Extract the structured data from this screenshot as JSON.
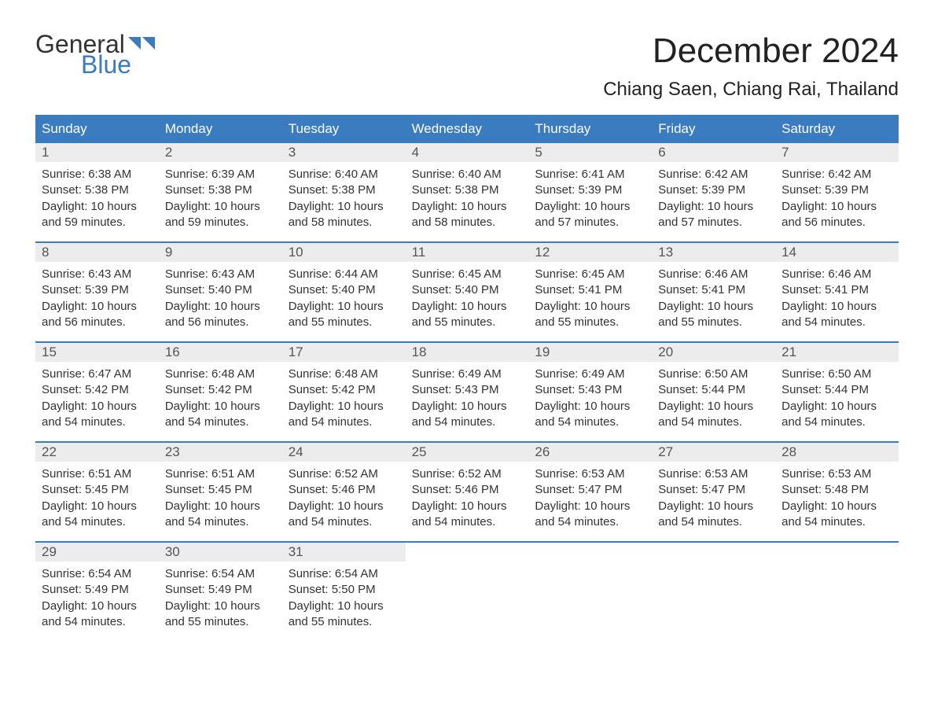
{
  "logo": {
    "word1": "General",
    "word2": "Blue",
    "color1": "#333333",
    "color2": "#3b7bbf"
  },
  "title": "December 2024",
  "location": "Chiang Saen, Chiang Rai, Thailand",
  "header_bg": "#3b7bbf",
  "header_fg": "#ffffff",
  "daynum_bg": "#ececec",
  "text_color": "#333333",
  "weekdays": [
    "Sunday",
    "Monday",
    "Tuesday",
    "Wednesday",
    "Thursday",
    "Friday",
    "Saturday"
  ],
  "days": [
    {
      "n": 1,
      "sunrise": "6:38 AM",
      "sunset": "5:38 PM",
      "daylight": "10 hours and 59 minutes."
    },
    {
      "n": 2,
      "sunrise": "6:39 AM",
      "sunset": "5:38 PM",
      "daylight": "10 hours and 59 minutes."
    },
    {
      "n": 3,
      "sunrise": "6:40 AM",
      "sunset": "5:38 PM",
      "daylight": "10 hours and 58 minutes."
    },
    {
      "n": 4,
      "sunrise": "6:40 AM",
      "sunset": "5:38 PM",
      "daylight": "10 hours and 58 minutes."
    },
    {
      "n": 5,
      "sunrise": "6:41 AM",
      "sunset": "5:39 PM",
      "daylight": "10 hours and 57 minutes."
    },
    {
      "n": 6,
      "sunrise": "6:42 AM",
      "sunset": "5:39 PM",
      "daylight": "10 hours and 57 minutes."
    },
    {
      "n": 7,
      "sunrise": "6:42 AM",
      "sunset": "5:39 PM",
      "daylight": "10 hours and 56 minutes."
    },
    {
      "n": 8,
      "sunrise": "6:43 AM",
      "sunset": "5:39 PM",
      "daylight": "10 hours and 56 minutes."
    },
    {
      "n": 9,
      "sunrise": "6:43 AM",
      "sunset": "5:40 PM",
      "daylight": "10 hours and 56 minutes."
    },
    {
      "n": 10,
      "sunrise": "6:44 AM",
      "sunset": "5:40 PM",
      "daylight": "10 hours and 55 minutes."
    },
    {
      "n": 11,
      "sunrise": "6:45 AM",
      "sunset": "5:40 PM",
      "daylight": "10 hours and 55 minutes."
    },
    {
      "n": 12,
      "sunrise": "6:45 AM",
      "sunset": "5:41 PM",
      "daylight": "10 hours and 55 minutes."
    },
    {
      "n": 13,
      "sunrise": "6:46 AM",
      "sunset": "5:41 PM",
      "daylight": "10 hours and 55 minutes."
    },
    {
      "n": 14,
      "sunrise": "6:46 AM",
      "sunset": "5:41 PM",
      "daylight": "10 hours and 54 minutes."
    },
    {
      "n": 15,
      "sunrise": "6:47 AM",
      "sunset": "5:42 PM",
      "daylight": "10 hours and 54 minutes."
    },
    {
      "n": 16,
      "sunrise": "6:48 AM",
      "sunset": "5:42 PM",
      "daylight": "10 hours and 54 minutes."
    },
    {
      "n": 17,
      "sunrise": "6:48 AM",
      "sunset": "5:42 PM",
      "daylight": "10 hours and 54 minutes."
    },
    {
      "n": 18,
      "sunrise": "6:49 AM",
      "sunset": "5:43 PM",
      "daylight": "10 hours and 54 minutes."
    },
    {
      "n": 19,
      "sunrise": "6:49 AM",
      "sunset": "5:43 PM",
      "daylight": "10 hours and 54 minutes."
    },
    {
      "n": 20,
      "sunrise": "6:50 AM",
      "sunset": "5:44 PM",
      "daylight": "10 hours and 54 minutes."
    },
    {
      "n": 21,
      "sunrise": "6:50 AM",
      "sunset": "5:44 PM",
      "daylight": "10 hours and 54 minutes."
    },
    {
      "n": 22,
      "sunrise": "6:51 AM",
      "sunset": "5:45 PM",
      "daylight": "10 hours and 54 minutes."
    },
    {
      "n": 23,
      "sunrise": "6:51 AM",
      "sunset": "5:45 PM",
      "daylight": "10 hours and 54 minutes."
    },
    {
      "n": 24,
      "sunrise": "6:52 AM",
      "sunset": "5:46 PM",
      "daylight": "10 hours and 54 minutes."
    },
    {
      "n": 25,
      "sunrise": "6:52 AM",
      "sunset": "5:46 PM",
      "daylight": "10 hours and 54 minutes."
    },
    {
      "n": 26,
      "sunrise": "6:53 AM",
      "sunset": "5:47 PM",
      "daylight": "10 hours and 54 minutes."
    },
    {
      "n": 27,
      "sunrise": "6:53 AM",
      "sunset": "5:47 PM",
      "daylight": "10 hours and 54 minutes."
    },
    {
      "n": 28,
      "sunrise": "6:53 AM",
      "sunset": "5:48 PM",
      "daylight": "10 hours and 54 minutes."
    },
    {
      "n": 29,
      "sunrise": "6:54 AM",
      "sunset": "5:49 PM",
      "daylight": "10 hours and 54 minutes."
    },
    {
      "n": 30,
      "sunrise": "6:54 AM",
      "sunset": "5:49 PM",
      "daylight": "10 hours and 55 minutes."
    },
    {
      "n": 31,
      "sunrise": "6:54 AM",
      "sunset": "5:50 PM",
      "daylight": "10 hours and 55 minutes."
    }
  ],
  "labels": {
    "sunrise": "Sunrise:",
    "sunset": "Sunset:",
    "daylight": "Daylight:"
  },
  "start_weekday": 0,
  "trailing_empty": 4
}
